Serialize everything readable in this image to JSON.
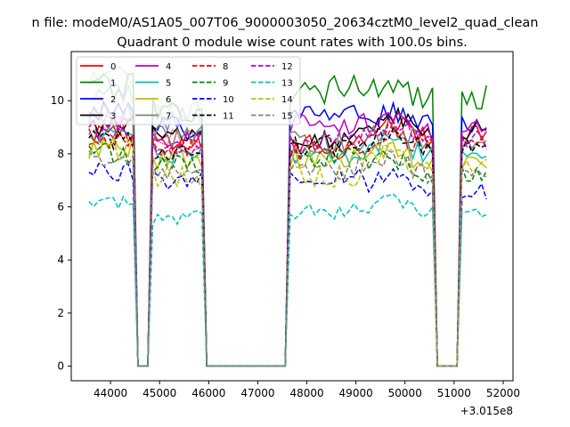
{
  "figure": {
    "suptitle": "n file: modeM0/AS1A05_007T06_9000003050_20634cztM0_level2_quad_clean",
    "title": "Quadrant 0 module wise count rates with 100.0s bins."
  },
  "chart_data": {
    "type": "line",
    "xlabel": "",
    "ylabel": "",
    "x_offset_label": "+3.015e8",
    "xlim": [
      43200,
      52200
    ],
    "ylim": [
      -0.55,
      11.85
    ],
    "xticks": [
      44000,
      45000,
      46000,
      47000,
      48000,
      49000,
      50000,
      51000,
      52000
    ],
    "xtick_labels": [
      "44000",
      "45000",
      "46000",
      "47000",
      "48000",
      "49000",
      "50000",
      "51000",
      "52000"
    ],
    "yticks": [
      0,
      2,
      4,
      6,
      8,
      10
    ],
    "ytick_labels": [
      "0",
      "2",
      "4",
      "6",
      "8",
      "10"
    ],
    "grid": false,
    "legend_placement": "top-left",
    "time_grid": {
      "x_start": 43560,
      "x_end": 51660,
      "step": 100
    },
    "gaps": [
      {
        "x_from": 44460,
        "x_to": 44560,
        "x_zero_from": 44560,
        "x_zero_to": 44760,
        "x_to_rise": 44860
      },
      {
        "x_from": 45860,
        "x_to": 45960,
        "x_zero_from": 45960,
        "x_zero_to": 47560,
        "x_to_rise": 47660
      },
      {
        "x_from": 50560,
        "x_to": 50660,
        "x_zero_from": 50660,
        "x_zero_to": 51060,
        "x_to_rise": 51160
      }
    ],
    "series": [
      {
        "name": "0",
        "color": "#ff0000",
        "dash": "solid",
        "level_seg1": 8.7,
        "level_seg2": 8.4,
        "level_seg3": 8.3,
        "level_seg4": 8.6,
        "amp": 0.45
      },
      {
        "name": "1",
        "color": "#008000",
        "dash": "solid",
        "level_seg1": 10.6,
        "level_seg2": 9.6,
        "level_seg3": 10.4,
        "level_seg4": 10.1,
        "amp": 0.55
      },
      {
        "name": "2",
        "color": "#0000ff",
        "dash": "solid",
        "level_seg1": 9.6,
        "level_seg2": 9.0,
        "level_seg3": 9.6,
        "level_seg4": 9.0,
        "amp": 0.45
      },
      {
        "name": "3",
        "color": "#000000",
        "dash": "solid",
        "level_seg1": 9.0,
        "level_seg2": 8.7,
        "level_seg3": 8.6,
        "level_seg4": 8.9,
        "amp": 0.4
      },
      {
        "name": "4",
        "color": "#bf00bf",
        "dash": "solid",
        "level_seg1": 9.3,
        "level_seg2": 8.5,
        "level_seg3": 9.1,
        "level_seg4": 8.8,
        "amp": 0.45
      },
      {
        "name": "5",
        "color": "#00bfbf",
        "dash": "solid",
        "level_seg1": 8.6,
        "level_seg2": 8.0,
        "level_seg3": 7.9,
        "level_seg4": 7.9,
        "amp": 0.4
      },
      {
        "name": "6",
        "color": "#bfbf00",
        "dash": "solid",
        "level_seg1": 8.3,
        "level_seg2": 7.8,
        "level_seg3": 7.8,
        "level_seg4": 7.6,
        "amp": 0.4
      },
      {
        "name": "7",
        "color": "#808080",
        "dash": "solid",
        "level_seg1": 9.4,
        "level_seg2": 8.6,
        "level_seg3": 8.4,
        "level_seg4": 8.3,
        "amp": 0.45
      },
      {
        "name": "8",
        "color": "#ff0000",
        "dash": "dashed",
        "level_seg1": 8.6,
        "level_seg2": 8.2,
        "level_seg3": 8.1,
        "level_seg4": 8.2,
        "amp": 0.4
      },
      {
        "name": "9",
        "color": "#008000",
        "dash": "dashed",
        "level_seg1": 8.0,
        "level_seg2": 7.6,
        "level_seg3": 7.8,
        "level_seg4": 7.2,
        "amp": 0.4
      },
      {
        "name": "10",
        "color": "#0000ff",
        "dash": "dashed",
        "level_seg1": 7.3,
        "level_seg2": 7.0,
        "level_seg3": 7.2,
        "level_seg4": 6.6,
        "amp": 0.35
      },
      {
        "name": "11",
        "color": "#000000",
        "dash": "dashed",
        "level_seg1": 8.5,
        "level_seg2": 8.0,
        "level_seg3": 8.3,
        "level_seg4": 8.2,
        "amp": 0.4
      },
      {
        "name": "12",
        "color": "#bf00bf",
        "dash": "dashed",
        "level_seg1": 8.9,
        "level_seg2": 8.3,
        "level_seg3": 8.4,
        "level_seg4": 8.5,
        "amp": 0.4
      },
      {
        "name": "13",
        "color": "#00bfbf",
        "dash": "dashed",
        "level_seg1": 6.2,
        "level_seg2": 5.6,
        "level_seg3": 5.8,
        "level_seg4": 5.7,
        "amp": 0.3
      },
      {
        "name": "14",
        "color": "#bfbf00",
        "dash": "dashed",
        "level_seg1": 8.2,
        "level_seg2": 7.1,
        "level_seg3": 7.1,
        "level_seg4": 7.4,
        "amp": 0.45
      },
      {
        "name": "15",
        "color": "#808080",
        "dash": "dashed",
        "level_seg1": 7.9,
        "level_seg2": 7.3,
        "level_seg3": 7.4,
        "level_seg4": 7.2,
        "amp": 0.4
      }
    ],
    "faded_series": [
      {
        "color": "#8080ff",
        "level_seg1": 10.3,
        "level_seg2": 9.3
      },
      {
        "color": "#80c080",
        "level_seg1": 10.9,
        "level_seg2": 9.6
      },
      {
        "color": "#ff8080",
        "level_seg1": 9.4,
        "level_seg2": 8.6
      }
    ]
  }
}
